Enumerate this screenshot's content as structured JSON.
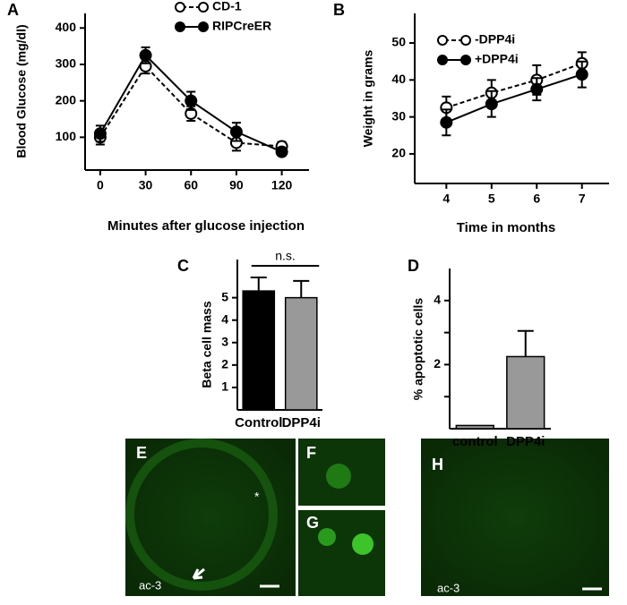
{
  "chart_data": [
    {
      "type": "line",
      "panel": "A",
      "ylabel": "Blood Glucose (mg/dl)",
      "xlabel": "Minutes after glucose injection",
      "x": [
        0,
        30,
        60,
        90,
        120
      ],
      "xlim": [
        -10,
        138
      ],
      "xticks": [
        0,
        30,
        60,
        90,
        120
      ],
      "ylim": [
        10,
        440
      ],
      "yticks": [
        100,
        200,
        300,
        400
      ],
      "series": [
        {
          "name": "CD-1",
          "color": "#000000",
          "marker": "open",
          "dashed": true,
          "values": [
            100,
            295,
            165,
            85,
            75
          ],
          "errors": [
            20,
            20,
            20,
            22,
            12
          ]
        },
        {
          "name": "RIPCreER",
          "color": "#000000",
          "marker": "filled",
          "dashed": false,
          "values": [
            110,
            325,
            200,
            115,
            60
          ],
          "errors": [
            22,
            22,
            25,
            25,
            10
          ]
        }
      ]
    },
    {
      "type": "line",
      "panel": "B",
      "ylabel": "Weight in grams",
      "xlabel": "Time in months",
      "x": [
        4,
        5,
        6,
        7
      ],
      "xlim": [
        3.3,
        7.6
      ],
      "xticks": [
        4,
        5,
        6,
        7
      ],
      "ylim": [
        12,
        58
      ],
      "yticks": [
        20,
        30,
        40,
        50
      ],
      "series": [
        {
          "name": "-DPP4i",
          "color": "#000000",
          "marker": "open",
          "dashed": true,
          "values": [
            32.5,
            36.5,
            40,
            44.5
          ],
          "errors": [
            3,
            3.5,
            4,
            3
          ]
        },
        {
          "name": "+DPP4i",
          "color": "#000000",
          "marker": "filled",
          "dashed": false,
          "values": [
            28.5,
            33.5,
            37.5,
            41.5
          ],
          "errors": [
            3.5,
            3.5,
            3,
            3.5
          ]
        }
      ]
    },
    {
      "type": "bar",
      "panel": "C",
      "ylabel": "Beta cell mass",
      "annotation": "n.s.",
      "categories": [
        "Control",
        "DPP4i"
      ],
      "values": [
        5.3,
        5.0
      ],
      "errors": [
        0.6,
        0.75
      ],
      "colors": [
        "#000000",
        "#999999"
      ],
      "ylim": [
        0,
        6.7
      ],
      "yticks": [
        1,
        2,
        3,
        4,
        5
      ]
    },
    {
      "type": "bar",
      "panel": "D",
      "ylabel": "% apoptotic cells",
      "categories": [
        "control",
        "DPP4i"
      ],
      "values": [
        0.1,
        2.25
      ],
      "errors": [
        0,
        0.8
      ],
      "colors": [
        "#999999",
        "#999999"
      ],
      "ylim": [
        0,
        5
      ],
      "yticks": [
        2,
        4
      ],
      "yminorticks": [
        1,
        3
      ]
    }
  ],
  "images": [
    {
      "label": "E",
      "stain": "ac-3",
      "marker": "*"
    },
    {
      "label": "F"
    },
    {
      "label": "G"
    },
    {
      "label": "H",
      "stain": "ac-3"
    }
  ]
}
